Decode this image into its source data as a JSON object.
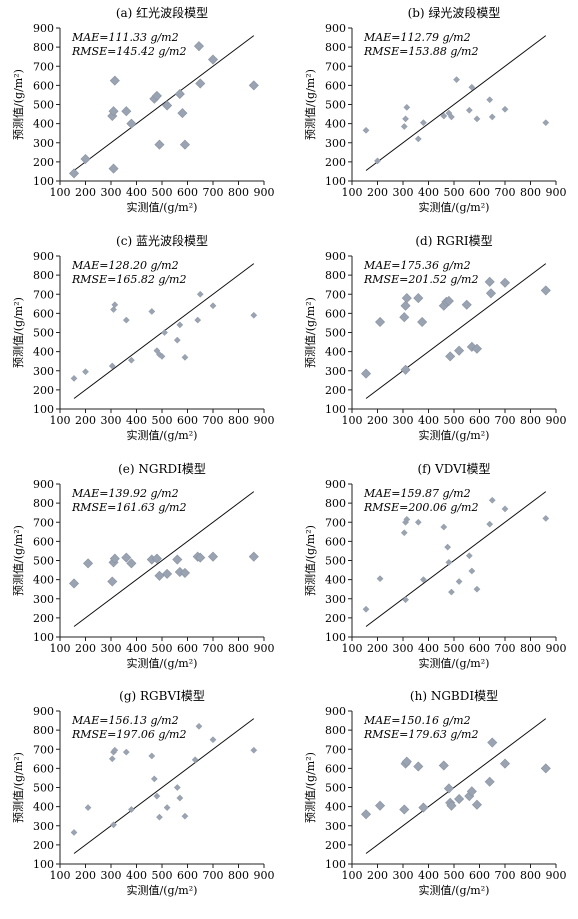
{
  "chart_data": [
    {
      "type": "scatter",
      "title": "(a) 红光波段模型",
      "stats": {
        "mae": "MAE=111.33 g/m2",
        "rmse": "RMSE=145.42 g/m2"
      },
      "marker": "diamond",
      "xlabel": "实测值/(g/m²)",
      "ylabel": "预测值/(g/m²)",
      "xlim": [
        100,
        900
      ],
      "ylim": [
        100,
        900
      ],
      "xticks": [
        100,
        200,
        300,
        400,
        500,
        600,
        700,
        800,
        900
      ],
      "yticks": [
        100,
        200,
        300,
        400,
        500,
        600,
        700,
        800,
        900
      ],
      "fit_line": [
        [
          155,
          155
        ],
        [
          860,
          860
        ]
      ],
      "points": [
        {
          "x": 155,
          "y": 140
        },
        {
          "x": 200,
          "y": 215
        },
        {
          "x": 305,
          "y": 440
        },
        {
          "x": 310,
          "y": 165
        },
        {
          "x": 310,
          "y": 465
        },
        {
          "x": 315,
          "y": 625
        },
        {
          "x": 360,
          "y": 465
        },
        {
          "x": 380,
          "y": 400
        },
        {
          "x": 470,
          "y": 530
        },
        {
          "x": 480,
          "y": 545
        },
        {
          "x": 490,
          "y": 290
        },
        {
          "x": 520,
          "y": 495
        },
        {
          "x": 570,
          "y": 555
        },
        {
          "x": 580,
          "y": 455
        },
        {
          "x": 590,
          "y": 290
        },
        {
          "x": 645,
          "y": 805
        },
        {
          "x": 650,
          "y": 610
        },
        {
          "x": 700,
          "y": 735
        },
        {
          "x": 860,
          "y": 600
        }
      ]
    },
    {
      "type": "scatter",
      "title": "(b) 绿光波段模型",
      "stats": {
        "mae": "MAE=112.79 g/m2",
        "rmse": "RMSE=153.88 g/m2"
      },
      "marker": "dot",
      "xlabel": "实测值/(g/m²)",
      "ylabel": "预测值/(g/m²)",
      "xlim": [
        100,
        900
      ],
      "ylim": [
        100,
        900
      ],
      "xticks": [
        100,
        200,
        300,
        400,
        500,
        600,
        700,
        800,
        900
      ],
      "yticks": [
        100,
        200,
        300,
        400,
        500,
        600,
        700,
        800,
        900
      ],
      "fit_line": [
        [
          155,
          155
        ],
        [
          860,
          860
        ]
      ],
      "points": [
        {
          "x": 155,
          "y": 365
        },
        {
          "x": 200,
          "y": 205
        },
        {
          "x": 305,
          "y": 385
        },
        {
          "x": 310,
          "y": 425
        },
        {
          "x": 315,
          "y": 485
        },
        {
          "x": 360,
          "y": 320
        },
        {
          "x": 380,
          "y": 405
        },
        {
          "x": 460,
          "y": 440
        },
        {
          "x": 480,
          "y": 455
        },
        {
          "x": 490,
          "y": 435
        },
        {
          "x": 510,
          "y": 630
        },
        {
          "x": 560,
          "y": 470
        },
        {
          "x": 570,
          "y": 590
        },
        {
          "x": 590,
          "y": 425
        },
        {
          "x": 640,
          "y": 525
        },
        {
          "x": 650,
          "y": 435
        },
        {
          "x": 700,
          "y": 475
        },
        {
          "x": 860,
          "y": 405
        }
      ]
    },
    {
      "type": "scatter",
      "title": "(c) 蓝光波段模型",
      "stats": {
        "mae": "MAE=128.20 g/m2",
        "rmse": "RMSE=165.82 g/m2"
      },
      "marker": "dot",
      "xlabel": "实测值/(g/m²)",
      "ylabel": "预测值/(g/m²)",
      "xlim": [
        100,
        900
      ],
      "ylim": [
        100,
        900
      ],
      "xticks": [
        100,
        200,
        300,
        400,
        500,
        600,
        700,
        800,
        900
      ],
      "yticks": [
        100,
        200,
        300,
        400,
        500,
        600,
        700,
        800,
        900
      ],
      "fit_line": [
        [
          155,
          155
        ],
        [
          860,
          860
        ]
      ],
      "points": [
        {
          "x": 155,
          "y": 260
        },
        {
          "x": 200,
          "y": 295
        },
        {
          "x": 305,
          "y": 325
        },
        {
          "x": 310,
          "y": 620
        },
        {
          "x": 315,
          "y": 645
        },
        {
          "x": 360,
          "y": 565
        },
        {
          "x": 380,
          "y": 355
        },
        {
          "x": 460,
          "y": 610
        },
        {
          "x": 480,
          "y": 405
        },
        {
          "x": 490,
          "y": 385
        },
        {
          "x": 500,
          "y": 375
        },
        {
          "x": 510,
          "y": 500
        },
        {
          "x": 560,
          "y": 460
        },
        {
          "x": 570,
          "y": 540
        },
        {
          "x": 590,
          "y": 370
        },
        {
          "x": 640,
          "y": 565
        },
        {
          "x": 650,
          "y": 700
        },
        {
          "x": 700,
          "y": 640
        },
        {
          "x": 860,
          "y": 590
        }
      ]
    },
    {
      "type": "scatter",
      "title": "(d) RGRI模型",
      "stats": {
        "mae": "MAE=175.36 g/m2",
        "rmse": "RMSE=201.52 g/m2"
      },
      "marker": "diamond",
      "xlabel": "实测值/(g/m²)",
      "ylabel": "预测值/(g/m²)",
      "xlim": [
        100,
        900
      ],
      "ylim": [
        100,
        900
      ],
      "xticks": [
        100,
        200,
        300,
        400,
        500,
        600,
        700,
        800,
        900
      ],
      "yticks": [
        100,
        200,
        300,
        400,
        500,
        600,
        700,
        800,
        900
      ],
      "fit_line": [
        [
          155,
          155
        ],
        [
          860,
          860
        ]
      ],
      "points": [
        {
          "x": 155,
          "y": 285
        },
        {
          "x": 210,
          "y": 555
        },
        {
          "x": 305,
          "y": 580
        },
        {
          "x": 310,
          "y": 305
        },
        {
          "x": 310,
          "y": 640
        },
        {
          "x": 315,
          "y": 680
        },
        {
          "x": 360,
          "y": 680
        },
        {
          "x": 375,
          "y": 555
        },
        {
          "x": 460,
          "y": 640
        },
        {
          "x": 470,
          "y": 660
        },
        {
          "x": 480,
          "y": 665
        },
        {
          "x": 485,
          "y": 375
        },
        {
          "x": 520,
          "y": 405
        },
        {
          "x": 550,
          "y": 645
        },
        {
          "x": 570,
          "y": 425
        },
        {
          "x": 590,
          "y": 415
        },
        {
          "x": 640,
          "y": 765
        },
        {
          "x": 645,
          "y": 705
        },
        {
          "x": 700,
          "y": 760
        },
        {
          "x": 860,
          "y": 720
        }
      ]
    },
    {
      "type": "scatter",
      "title": "(e) NGRDI模型",
      "stats": {
        "mae": "MAE=139.92 g/m2",
        "rmse": "RMSE=161.63 g/m2"
      },
      "marker": "diamond",
      "xlabel": "实测值/(g/m²)",
      "ylabel": "预测值/(g/m²)",
      "xlim": [
        100,
        900
      ],
      "ylim": [
        100,
        900
      ],
      "xticks": [
        100,
        200,
        300,
        400,
        500,
        600,
        700,
        800,
        900
      ],
      "yticks": [
        100,
        200,
        300,
        400,
        500,
        600,
        700,
        800,
        900
      ],
      "fit_line": [
        [
          155,
          155
        ],
        [
          860,
          860
        ]
      ],
      "points": [
        {
          "x": 155,
          "y": 380
        },
        {
          "x": 210,
          "y": 485
        },
        {
          "x": 305,
          "y": 390
        },
        {
          "x": 310,
          "y": 490
        },
        {
          "x": 315,
          "y": 510
        },
        {
          "x": 360,
          "y": 515
        },
        {
          "x": 380,
          "y": 485
        },
        {
          "x": 460,
          "y": 505
        },
        {
          "x": 480,
          "y": 510
        },
        {
          "x": 490,
          "y": 420
        },
        {
          "x": 520,
          "y": 430
        },
        {
          "x": 560,
          "y": 505
        },
        {
          "x": 570,
          "y": 440
        },
        {
          "x": 590,
          "y": 435
        },
        {
          "x": 640,
          "y": 520
        },
        {
          "x": 650,
          "y": 515
        },
        {
          "x": 700,
          "y": 520
        },
        {
          "x": 860,
          "y": 520
        }
      ]
    },
    {
      "type": "scatter",
      "title": "(f) VDVI模型",
      "stats": {
        "mae": "MAE=159.87 g/m2",
        "rmse": "RMSE=200.06 g/m2"
      },
      "marker": "dot",
      "xlabel": "实测值/(g/m²)",
      "ylabel": "预测值/(g/m²)",
      "xlim": [
        100,
        900
      ],
      "ylim": [
        100,
        900
      ],
      "xticks": [
        100,
        200,
        300,
        400,
        500,
        600,
        700,
        800,
        900
      ],
      "yticks": [
        100,
        200,
        300,
        400,
        500,
        600,
        700,
        800,
        900
      ],
      "fit_line": [
        [
          155,
          155
        ],
        [
          860,
          860
        ]
      ],
      "points": [
        {
          "x": 155,
          "y": 245
        },
        {
          "x": 210,
          "y": 405
        },
        {
          "x": 305,
          "y": 645
        },
        {
          "x": 310,
          "y": 295
        },
        {
          "x": 310,
          "y": 700
        },
        {
          "x": 315,
          "y": 715
        },
        {
          "x": 360,
          "y": 700
        },
        {
          "x": 380,
          "y": 400
        },
        {
          "x": 460,
          "y": 675
        },
        {
          "x": 475,
          "y": 570
        },
        {
          "x": 480,
          "y": 490
        },
        {
          "x": 490,
          "y": 335
        },
        {
          "x": 520,
          "y": 390
        },
        {
          "x": 560,
          "y": 525
        },
        {
          "x": 570,
          "y": 445
        },
        {
          "x": 590,
          "y": 350
        },
        {
          "x": 640,
          "y": 690
        },
        {
          "x": 650,
          "y": 815
        },
        {
          "x": 700,
          "y": 770
        },
        {
          "x": 860,
          "y": 720
        }
      ]
    },
    {
      "type": "scatter",
      "title": "(g) RGBVI模型",
      "stats": {
        "mae": "MAE=156.13 g/m2",
        "rmse": "RMSE=197.06 g/m2"
      },
      "marker": "dot",
      "xlabel": "实测值/(g/m²)",
      "ylabel": "预测值/(g/m²)",
      "xlim": [
        100,
        900
      ],
      "ylim": [
        100,
        900
      ],
      "xticks": [
        100,
        200,
        300,
        400,
        500,
        600,
        700,
        800,
        900
      ],
      "yticks": [
        100,
        200,
        300,
        400,
        500,
        600,
        700,
        800,
        900
      ],
      "fit_line": [
        [
          155,
          155
        ],
        [
          860,
          860
        ]
      ],
      "points": [
        {
          "x": 155,
          "y": 265
        },
        {
          "x": 210,
          "y": 395
        },
        {
          "x": 305,
          "y": 650
        },
        {
          "x": 310,
          "y": 305
        },
        {
          "x": 310,
          "y": 685
        },
        {
          "x": 315,
          "y": 695
        },
        {
          "x": 360,
          "y": 685
        },
        {
          "x": 380,
          "y": 385
        },
        {
          "x": 460,
          "y": 665
        },
        {
          "x": 470,
          "y": 545
        },
        {
          "x": 480,
          "y": 455
        },
        {
          "x": 490,
          "y": 345
        },
        {
          "x": 520,
          "y": 395
        },
        {
          "x": 560,
          "y": 500
        },
        {
          "x": 570,
          "y": 445
        },
        {
          "x": 590,
          "y": 350
        },
        {
          "x": 630,
          "y": 645
        },
        {
          "x": 645,
          "y": 820
        },
        {
          "x": 700,
          "y": 750
        },
        {
          "x": 860,
          "y": 695
        }
      ]
    },
    {
      "type": "scatter",
      "title": "(h) NGBDI模型",
      "stats": {
        "mae": "MAE=150.16 g/m2",
        "rmse": "RMSE=179.63 g/m2"
      },
      "marker": "diamond",
      "xlabel": "实测值/(g/m²)",
      "ylabel": "预测值/(g/m²)",
      "xlim": [
        100,
        900
      ],
      "ylim": [
        100,
        900
      ],
      "xticks": [
        100,
        200,
        300,
        400,
        500,
        600,
        700,
        800,
        900
      ],
      "yticks": [
        100,
        200,
        300,
        400,
        500,
        600,
        700,
        800,
        900
      ],
      "fit_line": [
        [
          155,
          155
        ],
        [
          860,
          860
        ]
      ],
      "points": [
        {
          "x": 155,
          "y": 360
        },
        {
          "x": 210,
          "y": 405
        },
        {
          "x": 305,
          "y": 385
        },
        {
          "x": 310,
          "y": 625
        },
        {
          "x": 315,
          "y": 635
        },
        {
          "x": 360,
          "y": 610
        },
        {
          "x": 380,
          "y": 395
        },
        {
          "x": 460,
          "y": 615
        },
        {
          "x": 480,
          "y": 495
        },
        {
          "x": 485,
          "y": 420
        },
        {
          "x": 490,
          "y": 405
        },
        {
          "x": 520,
          "y": 440
        },
        {
          "x": 560,
          "y": 455
        },
        {
          "x": 570,
          "y": 480
        },
        {
          "x": 590,
          "y": 410
        },
        {
          "x": 640,
          "y": 530
        },
        {
          "x": 650,
          "y": 735
        },
        {
          "x": 700,
          "y": 625
        },
        {
          "x": 860,
          "y": 600
        }
      ]
    }
  ]
}
